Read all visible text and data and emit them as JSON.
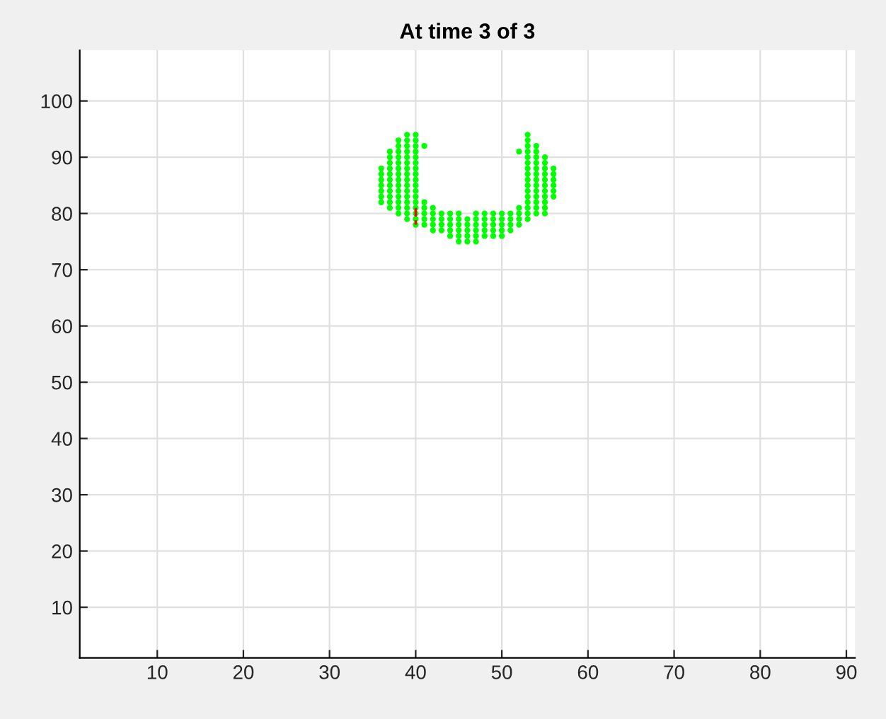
{
  "chart_data": {
    "type": "scatter",
    "title": "At time 3 of 3",
    "xlim": [
      1,
      91
    ],
    "ylim": [
      1,
      109
    ],
    "xticks": [
      10,
      20,
      30,
      40,
      50,
      60,
      70,
      80,
      90
    ],
    "yticks": [
      10,
      20,
      30,
      40,
      50,
      60,
      70,
      80,
      90,
      100
    ],
    "grid": true,
    "series": [
      {
        "color": "#00ff00",
        "marker": "circle",
        "x": [
          36,
          36,
          36,
          36,
          36,
          36,
          36,
          37,
          37,
          37,
          37,
          37,
          37,
          37,
          37,
          37,
          37,
          37,
          38,
          38,
          38,
          38,
          38,
          38,
          38,
          38,
          38,
          38,
          38,
          38,
          38,
          38,
          39,
          39,
          39,
          39,
          39,
          39,
          39,
          39,
          39,
          39,
          39,
          39,
          39,
          39,
          39,
          39,
          40,
          40,
          40,
          40,
          40,
          40,
          40,
          40,
          40,
          40,
          40,
          40,
          40,
          40,
          40,
          40,
          40,
          41,
          41,
          41,
          41,
          41,
          41,
          42,
          42,
          42,
          42,
          42,
          43,
          43,
          43,
          43,
          44,
          44,
          44,
          44,
          44,
          45,
          45,
          45,
          45,
          45,
          45,
          46,
          46,
          46,
          46,
          46,
          47,
          47,
          47,
          47,
          47,
          47,
          48,
          48,
          48,
          48,
          48,
          49,
          49,
          49,
          49,
          49,
          50,
          50,
          50,
          50,
          50,
          51,
          51,
          51,
          51,
          52,
          52,
          52,
          52,
          52,
          53,
          53,
          53,
          53,
          53,
          53,
          53,
          53,
          53,
          53,
          53,
          53,
          53,
          53,
          53,
          53,
          54,
          54,
          54,
          54,
          54,
          54,
          54,
          54,
          54,
          54,
          54,
          54,
          54,
          55,
          55,
          55,
          55,
          55,
          55,
          55,
          55,
          55,
          55,
          55,
          56,
          56,
          56,
          56,
          56,
          56
        ],
        "values": [
          82,
          83,
          84,
          85,
          86,
          87,
          88,
          81,
          82,
          83,
          84,
          85,
          86,
          87,
          88,
          89,
          90,
          91,
          80,
          81,
          82,
          83,
          84,
          85,
          86,
          87,
          88,
          89,
          90,
          91,
          92,
          93,
          79,
          80,
          81,
          82,
          83,
          84,
          85,
          86,
          87,
          88,
          89,
          90,
          91,
          92,
          93,
          94,
          78,
          79,
          80,
          81,
          82,
          83,
          84,
          85,
          86,
          87,
          88,
          89,
          90,
          91,
          92,
          93,
          94,
          78,
          79,
          80,
          81,
          82,
          92,
          77,
          78,
          79,
          80,
          81,
          77,
          78,
          79,
          80,
          76,
          77,
          78,
          79,
          80,
          75,
          76,
          77,
          78,
          79,
          80,
          75,
          76,
          77,
          78,
          79,
          75,
          76,
          77,
          78,
          79,
          80,
          76,
          77,
          78,
          79,
          80,
          76,
          77,
          78,
          79,
          80,
          76,
          77,
          78,
          79,
          80,
          77,
          78,
          79,
          80,
          78,
          79,
          80,
          81,
          91,
          79,
          80,
          81,
          82,
          83,
          84,
          85,
          86,
          87,
          88,
          89,
          90,
          91,
          92,
          93,
          94,
          80,
          81,
          82,
          83,
          84,
          85,
          86,
          87,
          88,
          89,
          90,
          91,
          92,
          80,
          81,
          82,
          83,
          84,
          85,
          86,
          87,
          88,
          89,
          90,
          83,
          84,
          85,
          86,
          87,
          88
        ]
      },
      {
        "color": "#ff0000",
        "type": "line",
        "line_style": "dashed",
        "x": [
          40,
          40
        ],
        "values": [
          81,
          78
        ]
      }
    ]
  }
}
